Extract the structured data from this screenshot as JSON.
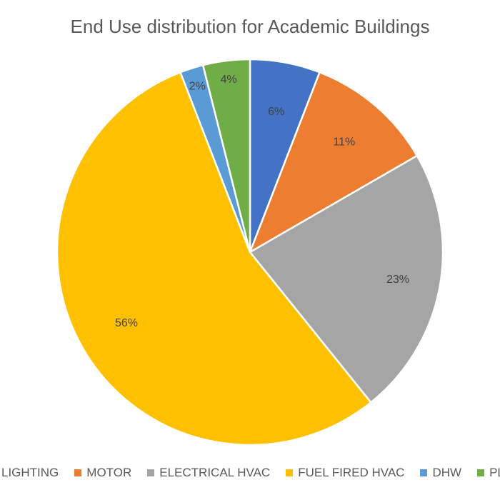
{
  "chart_data": {
    "type": "pie",
    "title": "End Use distribution for Academic Buildings",
    "categories": [
      "LIGHTING",
      "MOTOR",
      "ELECTRICAL HVAC",
      "FUEL FIRED HVAC",
      "DHW",
      "PLUG LOADS"
    ],
    "values": [
      6,
      11,
      23,
      56,
      2,
      4
    ],
    "data_labels": [
      "6%",
      "11%",
      "23%",
      "56%",
      "2%",
      "4%"
    ],
    "colors": [
      "#4472C4",
      "#ED7D31",
      "#A5A5A5",
      "#FFC000",
      "#5B9BD5",
      "#70AD47"
    ],
    "legend": {
      "position": "bottom",
      "entries": [
        "LIGHTING",
        "MOTOR",
        "ELECTRICAL HVAC",
        "FUEL FIRED HVAC",
        "DHW",
        "PLUG LOADS"
      ]
    },
    "start_angle": "12 o'clock, clockwise"
  }
}
